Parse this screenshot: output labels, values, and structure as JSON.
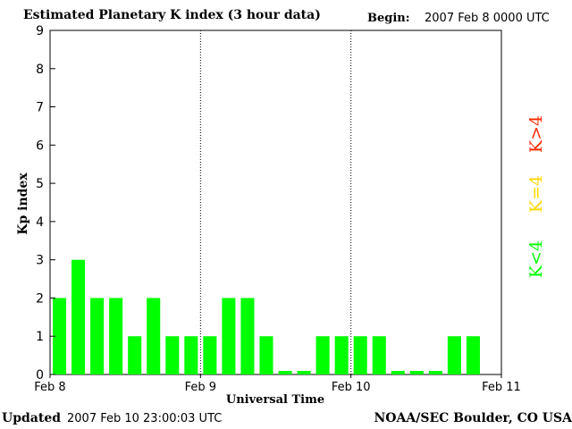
{
  "header": {
    "title": "Estimated Planetary K index (3 hour data)",
    "begin_label": "Begin:",
    "begin_value": "2007 Feb 8 0000 UTC"
  },
  "footer": {
    "updated_label": "Updated",
    "updated_value": "2007 Feb 10 23:00:03 UTC",
    "source": "NOAA/SEC Boulder, CO USA"
  },
  "legend": [
    {
      "label": "K<4",
      "color": "#00ff00"
    },
    {
      "label": "K=4",
      "color": "#ffd700"
    },
    {
      "label": "K>4",
      "color": "#ff2a00"
    }
  ],
  "chart_data": {
    "type": "bar",
    "title": "Estimated Planetary K index (3 hour data)",
    "xlabel": "Universal Time",
    "ylabel": "Kp index",
    "ylim": [
      0,
      9
    ],
    "yticks": [
      "0",
      "1",
      "2",
      "3",
      "4",
      "5",
      "6",
      "7",
      "8",
      "9"
    ],
    "xtick_labels": [
      "Feb 8",
      "Feb 9",
      "Feb 10",
      "Feb 11"
    ],
    "interval_hours": 3,
    "values": [
      2,
      3,
      2,
      2,
      1,
      2,
      1,
      1,
      1,
      2,
      2,
      1,
      0,
      0,
      1,
      1,
      1,
      1,
      0,
      0,
      0,
      1,
      1
    ],
    "bar_color": "#00ff00",
    "grid": "dotted vertical lines at day boundaries"
  }
}
